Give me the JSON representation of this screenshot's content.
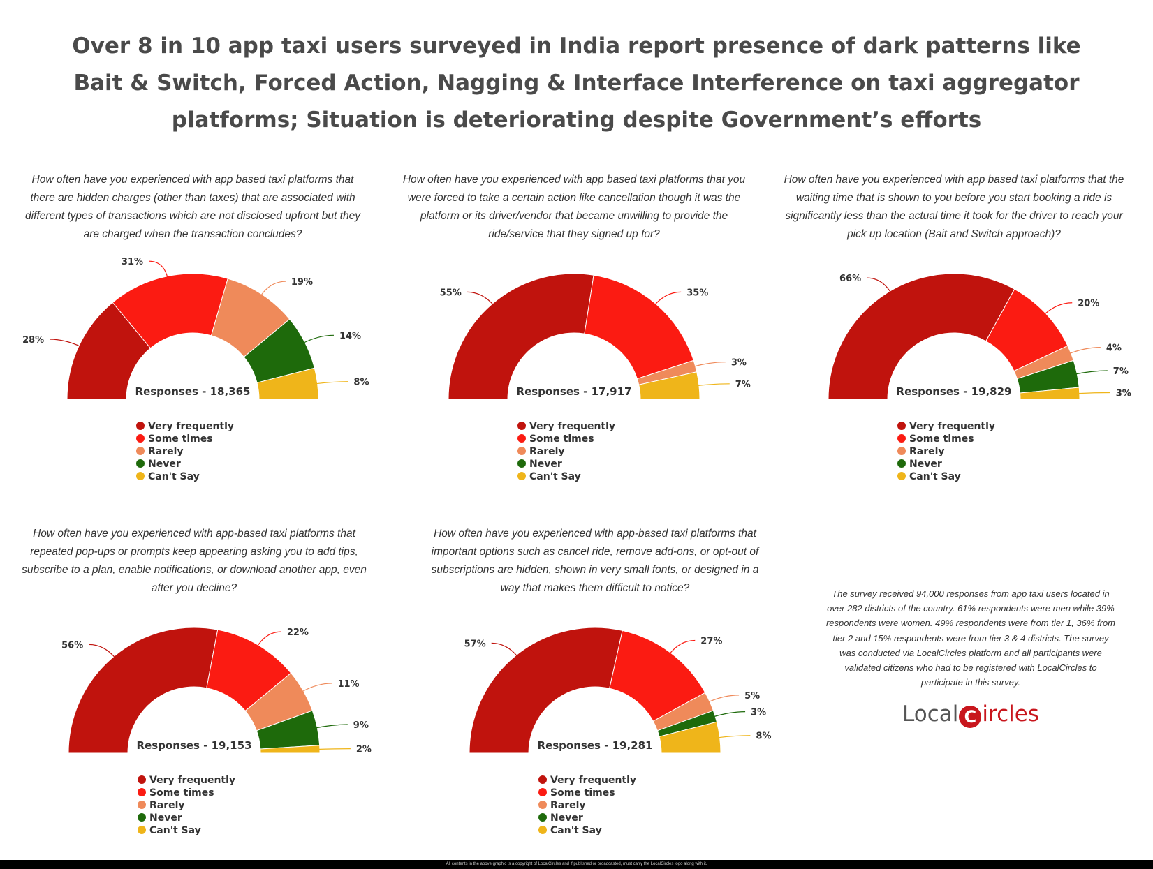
{
  "title": "Over 8 in 10 app taxi users surveyed in India report presence of dark patterns like Bait & Switch, Forced Action, Nagging & Interface Interference on taxi aggregator platforms; Situation is deteriorating despite Government’s efforts",
  "legend": [
    "Very frequently",
    "Some times",
    "Rarely",
    "Never",
    "Can't Say"
  ],
  "colors": [
    "#c0130d",
    "#fb1b12",
    "#ef8a5a",
    "#1e6a0b",
    "#efb51a"
  ],
  "chart_data": [
    {
      "type": "pie",
      "variant": "semi-donut",
      "question": "How often have you experienced with app based taxi platforms that there are hidden charges (other than taxes) that are associated with different types of transactions which are not disclosed upfront but they are charged when the transaction concludes?",
      "responses": "Responses - 18,365",
      "categories": [
        "Very frequently",
        "Some times",
        "Rarely",
        "Never",
        "Can't Say"
      ],
      "values": [
        28,
        31,
        19,
        14,
        8
      ]
    },
    {
      "type": "pie",
      "variant": "semi-donut",
      "question": "How often have you experienced with app based taxi platforms that you were forced to take a certain action like cancellation though it was the platform or its driver/vendor that became unwilling to provide the ride/service that they signed up for?",
      "responses": "Responses - 17,917",
      "categories": [
        "Very frequently",
        "Some times",
        "Rarely",
        "Never",
        "Can't Say"
      ],
      "values": [
        55,
        35,
        3,
        0,
        7
      ]
    },
    {
      "type": "pie",
      "variant": "semi-donut",
      "question": "How often have you experienced with app based taxi platforms that the waiting time that is shown to you before you start booking a ride is significantly less than the actual time it took for the driver to reach your pick up location (Bait and Switch approach)?",
      "responses": "Responses - 19,829",
      "categories": [
        "Very frequently",
        "Some times",
        "Rarely",
        "Never",
        "Can't Say"
      ],
      "values": [
        66,
        20,
        4,
        7,
        3
      ]
    },
    {
      "type": "pie",
      "variant": "semi-donut",
      "question": "How often have you experienced with app-based taxi platforms that repeated pop-ups or prompts keep appearing asking you to add tips, subscribe to a plan, enable notifications, or download another app, even after you decline?",
      "responses": "Responses - 19,153",
      "categories": [
        "Very frequently",
        "Some times",
        "Rarely",
        "Never",
        "Can't Say"
      ],
      "values": [
        56,
        22,
        11,
        9,
        2
      ]
    },
    {
      "type": "pie",
      "variant": "semi-donut",
      "question": "How often have you experienced with app-based taxi platforms that important options such as cancel ride, remove add-ons, or opt-out of subscriptions are hidden, shown in very small fonts, or designed in a way that makes them difficult to notice?",
      "responses": "Responses - 19,281",
      "categories": [
        "Very frequently",
        "Some times",
        "Rarely",
        "Never",
        "Can't Say"
      ],
      "values": [
        57,
        27,
        5,
        3,
        8
      ]
    }
  ],
  "note": "The survey received 94,000 responses from app taxi users located in over 282 districts of the country. 61% respondents were men while 39% respondents were women. 49% respondents were from tier 1, 36% from tier 2 and 15% respondents were from tier 3 & 4 districts. The survey was conducted via LocalCircles platform and all participants were validated citizens who had to be registered with LocalCircles to participate in this survey.",
  "logo": {
    "text": "LocalCircles",
    "part1": "Local",
    "pin": "C",
    "part2": "ircles"
  },
  "footer": "All contents in the above graphic is a copyright of LocalCircles and if published or broadcasted, must carry the LocalCircles logo along with it."
}
